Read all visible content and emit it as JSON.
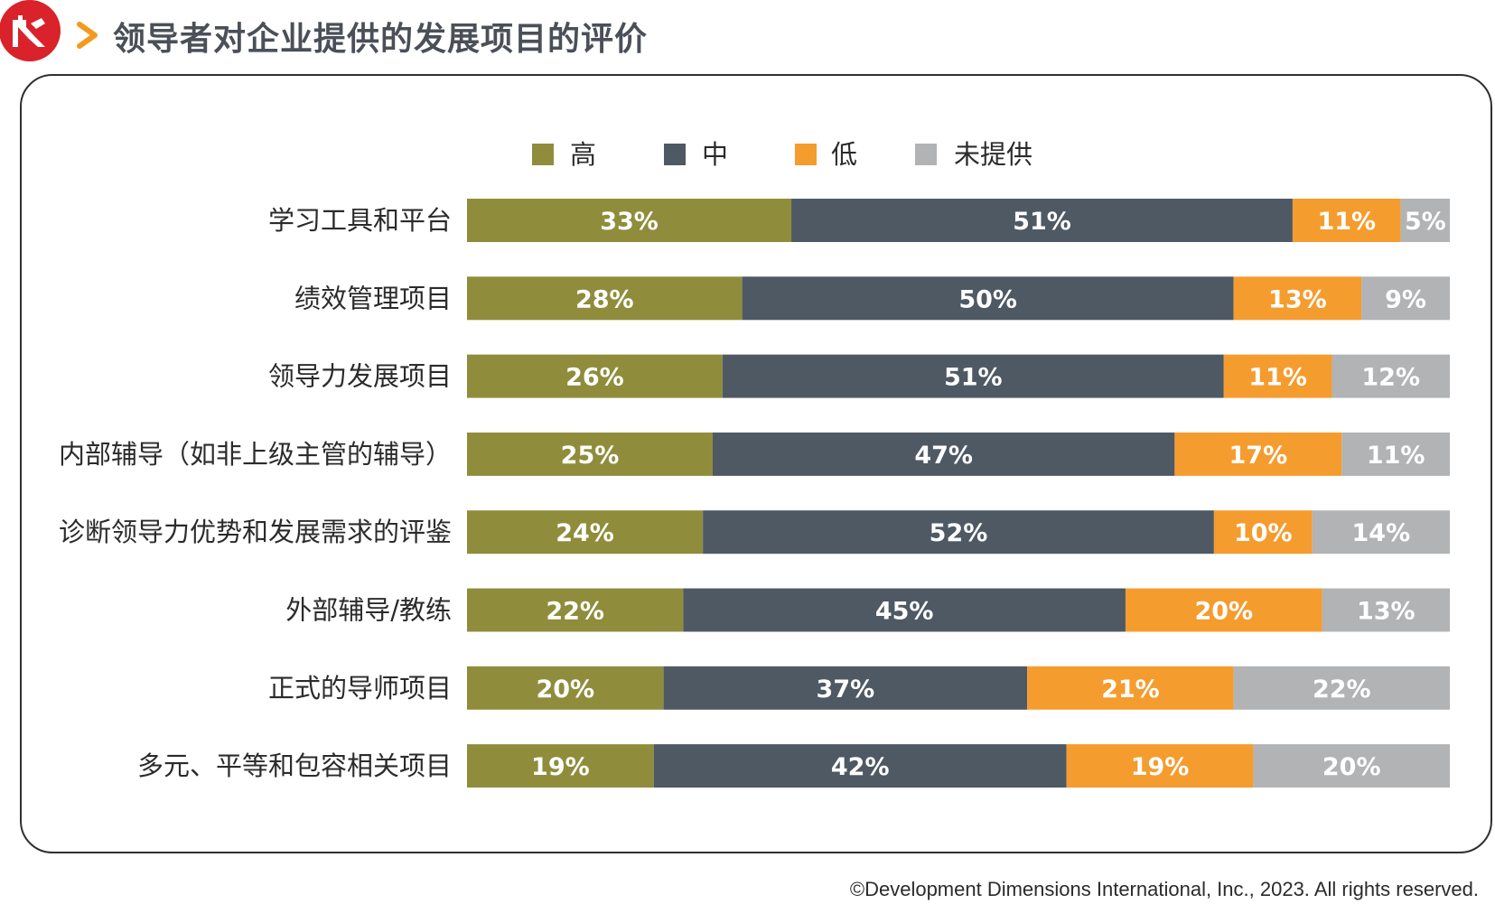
{
  "header": {
    "title": "领导者对企业提供的发展项目的评价",
    "logo_icon": "great-wall-logo-icon",
    "chevron_icon": "chevron-right-icon",
    "accent_color": "#f39a1e",
    "logo_color": "#d9222a"
  },
  "chart_data": {
    "type": "bar",
    "orientation": "horizontal",
    "stacked": true,
    "categories": [
      "学习工具和平台",
      "绩效管理项目",
      "领导力发展项目",
      "内部辅导（如非上级主管的辅导）",
      "诊断领导力优势和发展需求的评鉴",
      "外部辅导/教练",
      "正式的导师项目",
      "多元、平等和包容相关项目"
    ],
    "series": [
      {
        "name": "高",
        "color": "#8f8d3c",
        "values": [
          33,
          28,
          26,
          25,
          24,
          22,
          20,
          19
        ]
      },
      {
        "name": "中",
        "color": "#4e5964",
        "values": [
          51,
          50,
          51,
          47,
          52,
          45,
          37,
          42
        ]
      },
      {
        "name": "低",
        "color": "#f59c2f",
        "values": [
          11,
          13,
          11,
          17,
          10,
          20,
          21,
          19
        ]
      },
      {
        "name": "未提供",
        "color": "#b1b3b5",
        "values": [
          5,
          9,
          12,
          11,
          14,
          13,
          22,
          20
        ]
      }
    ],
    "value_suffix": "%",
    "legend_position": "top",
    "grid": false,
    "data_labels": true
  },
  "footer": {
    "copyright": "©Development Dimensions International, Inc., 2023. All rights reserved."
  }
}
